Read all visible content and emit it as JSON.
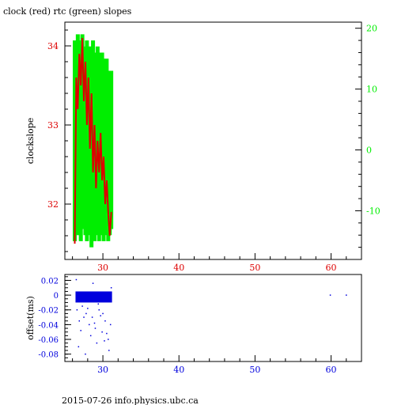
{
  "title": "clock (red) rtc (green) slopes",
  "footer": "2015-07-26 info.physics.ubc.ca",
  "colors": {
    "clock": "#dd0000",
    "rtc": "#00ee00",
    "offset": "#0000dd",
    "axis": "#000000"
  },
  "chart_data": [
    {
      "type": "line",
      "title": "clock (red) rtc (green) slopes",
      "ylabel": "clockslope",
      "xlim": [
        25,
        64
      ],
      "ylim_left": [
        31.3,
        34.3
      ],
      "ylim_right": [
        -18,
        21
      ],
      "x_ticks": [
        "30",
        "40",
        "50",
        "60"
      ],
      "y_ticks_left": [
        "32",
        "33",
        "34"
      ],
      "y_ticks_right": [
        "-10",
        "0",
        "10",
        "20"
      ],
      "series": [
        {
          "name": "clock",
          "axis": "left",
          "x": [
            26.3,
            26.5,
            26.7,
            26.9,
            27.1,
            27.3,
            27.5,
            27.7,
            27.9,
            28.1,
            28.3,
            28.5,
            28.7,
            28.9,
            29.1,
            29.3,
            29.5,
            29.7,
            29.9,
            30.1,
            30.3,
            30.5,
            30.7,
            30.9,
            31.1
          ],
          "values": [
            31.5,
            33.6,
            33.2,
            33.9,
            33.5,
            34.1,
            33.3,
            33.8,
            33.0,
            33.6,
            32.7,
            33.4,
            32.4,
            33.0,
            32.2,
            32.8,
            32.4,
            32.9,
            32.3,
            32.6,
            32.0,
            32.3,
            31.9,
            31.6,
            31.9
          ]
        },
        {
          "name": "rtc",
          "axis": "right",
          "x": [
            26.3,
            26.5,
            26.7,
            26.9,
            27.1,
            27.3,
            27.5,
            27.7,
            27.9,
            28.1,
            28.3,
            28.5,
            28.7,
            28.9,
            29.1,
            29.3,
            29.5,
            29.7,
            29.9,
            30.1,
            30.3,
            30.5,
            30.7,
            30.9,
            31.1
          ],
          "low": [
            -15,
            -14,
            -13,
            -14,
            -15,
            -13,
            -12,
            -14,
            -15,
            -13,
            -14,
            -16,
            -13,
            -15,
            -14,
            -12,
            -15,
            -14,
            -13,
            -15,
            -14,
            -13,
            -15,
            -14,
            -13
          ],
          "high": [
            18,
            17,
            19,
            16,
            18,
            19,
            17,
            16,
            18,
            17,
            15,
            17,
            18,
            16,
            15,
            17,
            16,
            14,
            16,
            15,
            14,
            15,
            13,
            12,
            13
          ]
        }
      ]
    },
    {
      "type": "scatter",
      "ylabel": "offset(ms)",
      "xlim": [
        25,
        64
      ],
      "ylim": [
        -0.09,
        0.028
      ],
      "x_ticks": [
        "30",
        "40",
        "50",
        "60"
      ],
      "y_ticks": [
        "0.02",
        "0",
        "-0.02",
        "-0.04",
        "-0.06",
        "-0.08"
      ],
      "band": {
        "x": [
          26.4,
          31.2
        ],
        "y": [
          -0.01,
          0.005
        ]
      },
      "points": {
        "x": [
          26.6,
          26.9,
          27.3,
          27.8,
          28.2,
          28.6,
          29.0,
          29.5,
          29.9,
          30.3,
          30.7,
          31.0,
          26.8,
          27.5,
          28.4,
          29.2,
          30.0,
          30.8,
          27.1,
          28.0,
          28.9,
          29.7,
          30.5,
          26.5,
          31.1,
          27.7,
          29.4,
          30.2,
          28.7,
          59.9,
          62.0
        ],
        "y": [
          -0.02,
          -0.035,
          -0.015,
          -0.025,
          -0.04,
          -0.03,
          -0.045,
          -0.02,
          -0.05,
          -0.035,
          -0.06,
          -0.04,
          -0.07,
          -0.03,
          -0.055,
          -0.065,
          -0.025,
          -0.075,
          -0.048,
          -0.018,
          -0.038,
          -0.028,
          -0.052,
          0.021,
          0.01,
          -0.08,
          -0.012,
          -0.062,
          0.016,
          0.0,
          0.0
        ]
      }
    }
  ]
}
